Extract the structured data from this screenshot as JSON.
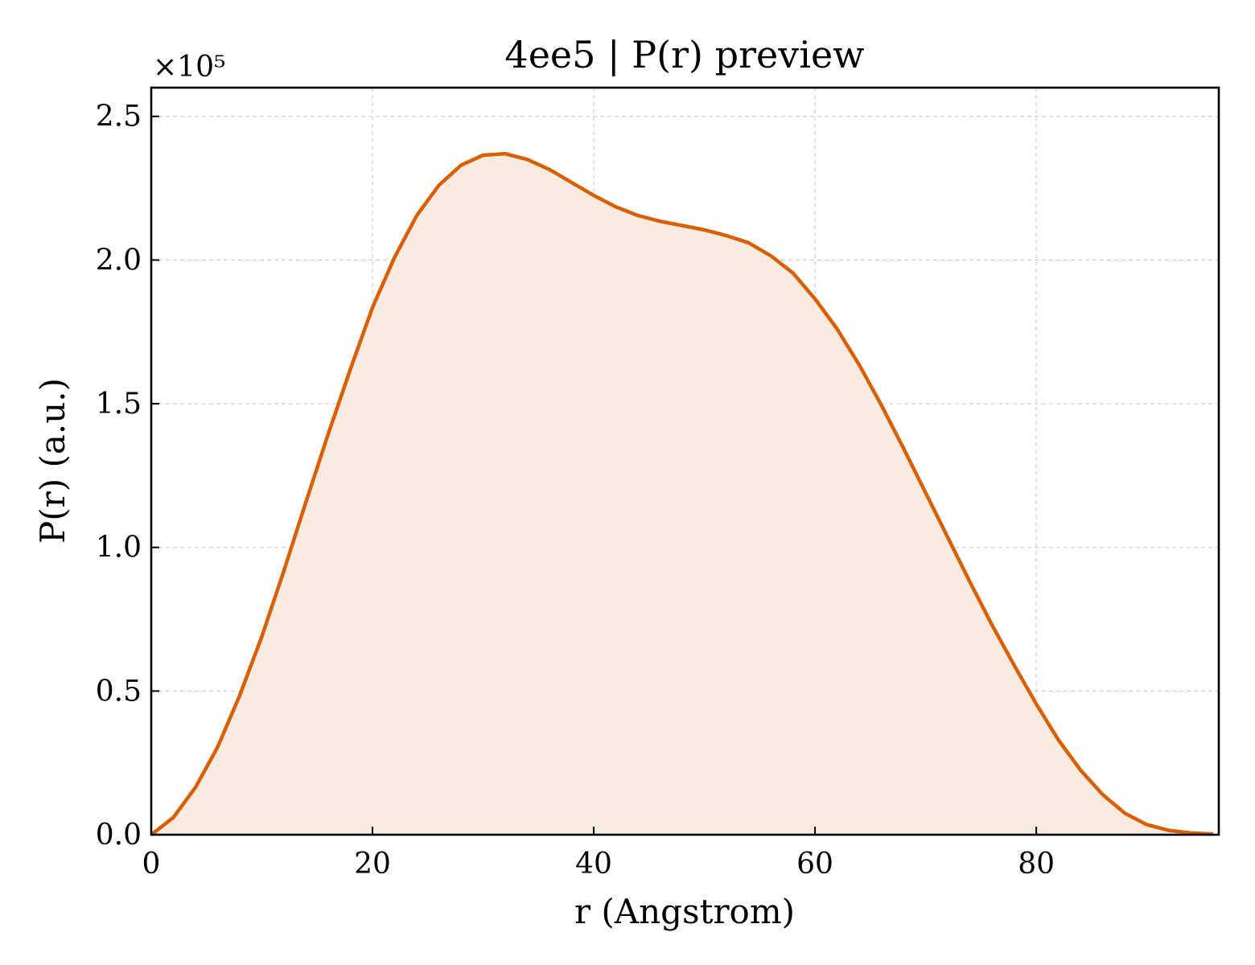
{
  "chart_data": {
    "type": "area",
    "title": "4ee5 | P(r) preview",
    "xlabel": "r (Angstrom)",
    "ylabel": "P(r) (a.u.)",
    "y_scale_label": "×10⁵",
    "y_multiplier": 100000,
    "xlim": [
      0,
      96.5
    ],
    "ylim": [
      0,
      2.6
    ],
    "x_ticks": [
      0,
      20,
      40,
      60,
      80
    ],
    "y_ticks": [
      0.0,
      0.5,
      1.0,
      1.5,
      2.0,
      2.5
    ],
    "x_tick_labels": [
      "0",
      "20",
      "40",
      "60",
      "80"
    ],
    "y_tick_labels": [
      "0.0",
      "0.5",
      "1.0",
      "1.5",
      "2.0",
      "2.5"
    ],
    "grid": true,
    "line_color": "#d95f02",
    "fill_color": "#f9ebe0",
    "series": [
      {
        "x": [
          0,
          2,
          4,
          6,
          8,
          10,
          12,
          14,
          16,
          18,
          20,
          22,
          24,
          26,
          28,
          30,
          32,
          34,
          36,
          38,
          40,
          42,
          44,
          46,
          48,
          50,
          52,
          54,
          56,
          58,
          60,
          62,
          64,
          66,
          68,
          70,
          72,
          74,
          76,
          78,
          80,
          82,
          84,
          86,
          88,
          90,
          92,
          94,
          96
        ],
        "y": [
          0.0,
          0.06,
          0.165,
          0.305,
          0.485,
          0.69,
          0.92,
          1.16,
          1.395,
          1.62,
          1.835,
          2.01,
          2.155,
          2.26,
          2.33,
          2.365,
          2.37,
          2.35,
          2.315,
          2.27,
          2.225,
          2.185,
          2.155,
          2.135,
          2.12,
          2.105,
          2.085,
          2.06,
          2.015,
          1.955,
          1.865,
          1.76,
          1.635,
          1.495,
          1.345,
          1.19,
          1.035,
          0.88,
          0.73,
          0.59,
          0.455,
          0.33,
          0.225,
          0.14,
          0.075,
          0.035,
          0.015,
          0.006,
          0.002
        ]
      }
    ]
  }
}
